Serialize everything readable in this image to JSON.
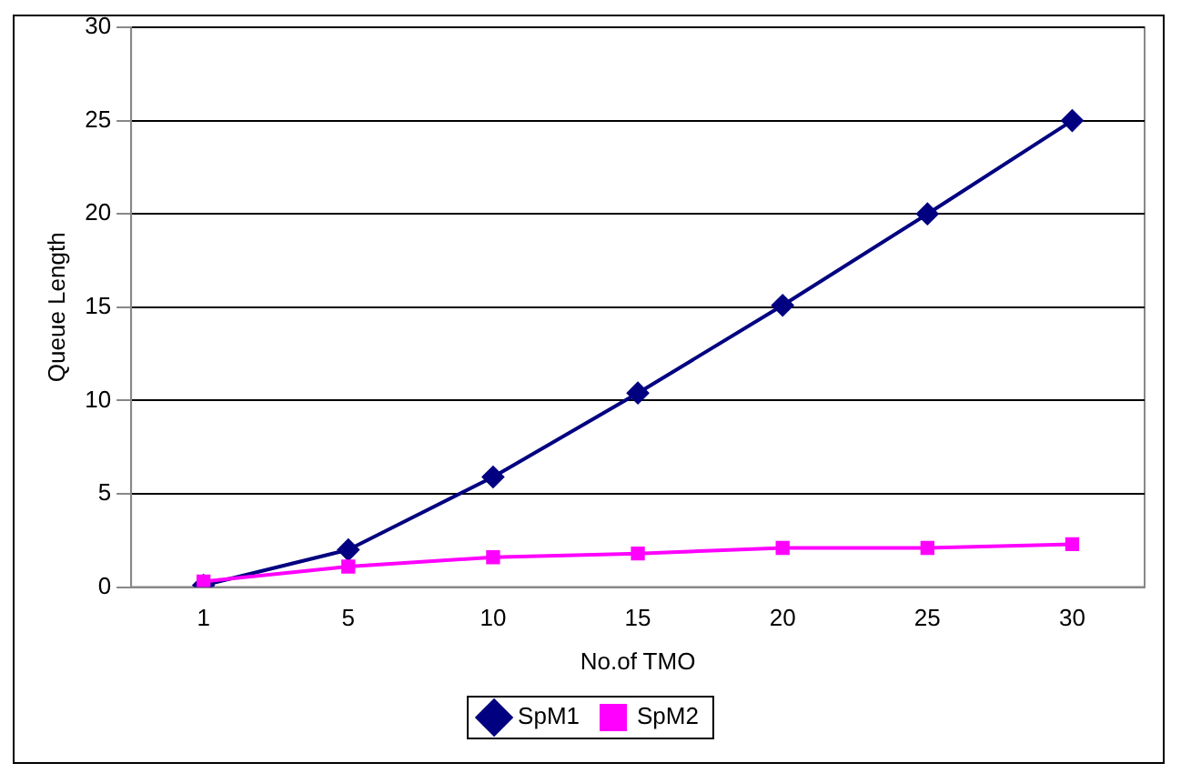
{
  "chart_data": {
    "type": "line",
    "xlabel": "No.of TMO",
    "ylabel": "Queue Length",
    "categories": [
      "1",
      "5",
      "10",
      "15",
      "20",
      "25",
      "30"
    ],
    "series": [
      {
        "name": "SpM1",
        "color": "#000080",
        "marker": "diamond",
        "values": [
          0.1,
          2.0,
          5.9,
          10.4,
          15.1,
          20.0,
          25.0
        ]
      },
      {
        "name": "SpM2",
        "color": "#ff00ff",
        "marker": "square",
        "values": [
          0.3,
          1.1,
          1.6,
          1.8,
          2.1,
          2.1,
          2.3
        ]
      }
    ],
    "ylim": [
      0,
      30
    ],
    "yticks": [
      0,
      5,
      10,
      15,
      20,
      25,
      30
    ],
    "grid": "y",
    "legend": "bottom",
    "line_style": "solid"
  }
}
